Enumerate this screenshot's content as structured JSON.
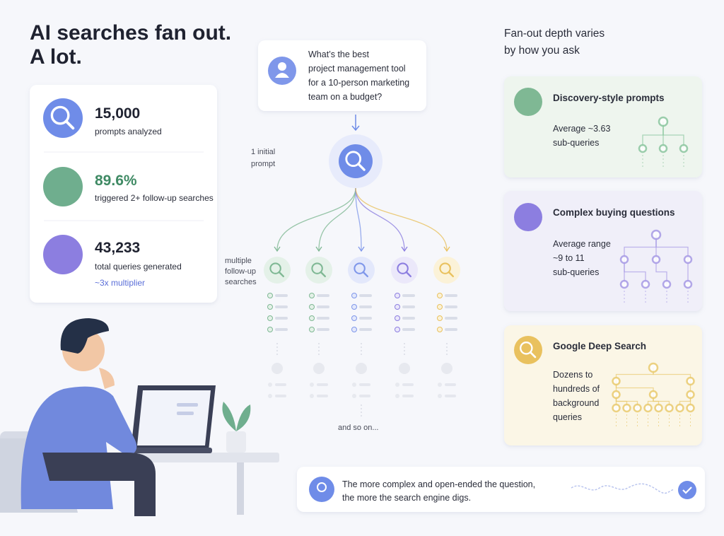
{
  "header": {
    "title_lines": [
      "AI searches fan out.",
      "A lot."
    ]
  },
  "stats": [
    {
      "value": "15,000",
      "label": "prompts analyzed"
    },
    {
      "value": "89.6%",
      "label": "triggered 2+ follow-up searches"
    },
    {
      "value": "43,233",
      "label": "total queries generated",
      "note": "~3x multiplier"
    }
  ],
  "prompt": {
    "lines": [
      "What’s the best",
      "project management tool",
      "for a 10-person marketing",
      "team on a budget?"
    ]
  },
  "flow": {
    "initial_label": [
      "1 initial",
      "prompt"
    ],
    "followup_label": [
      "multiple",
      "follow-up",
      "searches"
    ],
    "more": "and so on..."
  },
  "depth": {
    "heading": [
      "Fan-out depth varies",
      "by how you ask"
    ],
    "cards": [
      {
        "title": "Discovery-style prompts",
        "lines": [
          "Average ~3.63",
          "sub-queries"
        ]
      },
      {
        "title": "Complex buying questions",
        "lines": [
          "Average range",
          "~9 to 11",
          "sub-queries"
        ]
      },
      {
        "title": "Google Deep Search",
        "lines": [
          "Dozens to",
          "hundreds of",
          "background",
          "queries"
        ]
      }
    ]
  },
  "footer": {
    "lines": [
      "The more complex and open-ended the question,",
      "the more the search engine digs."
    ]
  }
}
